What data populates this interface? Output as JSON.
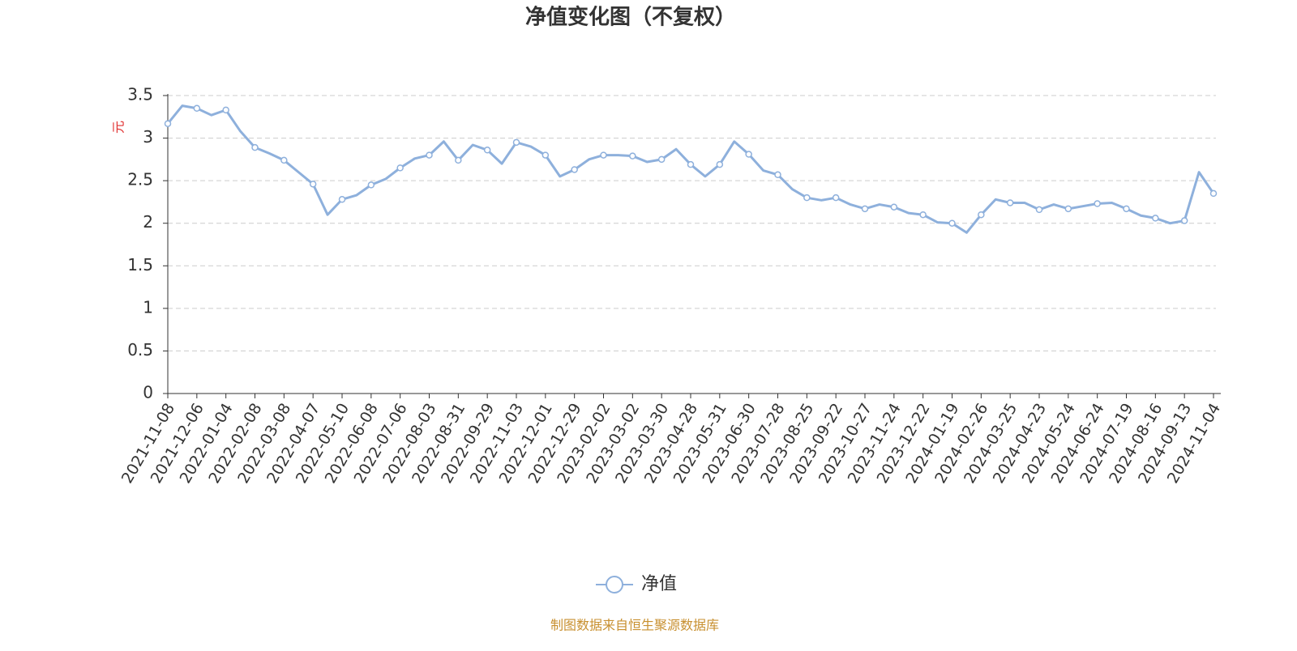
{
  "chart_data": {
    "type": "line",
    "title": "净值变化图（不复权）",
    "y_label": "元",
    "categories": [
      "2021-11-08",
      null,
      "2021-12-06",
      null,
      "2022-01-04",
      null,
      "2022-02-08",
      null,
      "2022-03-08",
      null,
      "2022-04-07",
      null,
      "2022-05-10",
      null,
      "2022-06-08",
      null,
      "2022-07-06",
      null,
      "2022-08-03",
      null,
      "2022-08-31",
      null,
      "2022-09-29",
      null,
      "2022-11-03",
      null,
      "2022-12-01",
      null,
      "2022-12-29",
      null,
      "2023-02-02",
      null,
      "2023-03-02",
      null,
      "2023-03-30",
      null,
      "2023-04-28",
      null,
      "2023-05-31",
      null,
      "2023-06-30",
      null,
      "2023-07-28",
      null,
      "2023-08-25",
      null,
      "2023-09-22",
      null,
      "2023-10-27",
      null,
      "2023-11-24",
      null,
      "2023-12-22",
      null,
      "2024-01-19",
      null,
      "2024-02-26",
      null,
      "2024-03-25",
      null,
      "2024-04-23",
      null,
      "2024-05-24",
      null,
      "2024-06-24",
      null,
      "2024-07-19",
      null,
      "2024-08-16",
      null,
      "2024-09-13",
      null,
      "2024-11-04"
    ],
    "series": [
      {
        "name": "净值",
        "color": "#8eb0dc",
        "values": [
          3.17,
          3.38,
          3.35,
          3.27,
          3.33,
          3.08,
          2.89,
          2.82,
          2.74,
          2.6,
          2.46,
          2.1,
          2.28,
          2.33,
          2.45,
          2.52,
          2.65,
          2.76,
          2.8,
          2.96,
          2.74,
          2.92,
          2.86,
          2.7,
          2.95,
          2.9,
          2.8,
          2.55,
          2.63,
          2.75,
          2.8,
          2.8,
          2.79,
          2.72,
          2.75,
          2.87,
          2.69,
          2.55,
          2.69,
          2.96,
          2.81,
          2.62,
          2.57,
          2.4,
          2.3,
          2.27,
          2.3,
          2.22,
          2.17,
          2.22,
          2.19,
          2.12,
          2.1,
          2.01,
          2.0,
          1.89,
          2.1,
          2.28,
          2.24,
          2.24,
          2.16,
          2.22,
          2.17,
          2.2,
          2.23,
          2.24,
          2.17,
          2.09,
          2.06,
          2.0,
          2.03,
          2.6,
          2.35
        ]
      }
    ],
    "ylim": [
      0,
      3.5
    ],
    "yticks": [
      0,
      0.5,
      1,
      1.5,
      2,
      2.5,
      3,
      3.5
    ],
    "grid": true,
    "legend": "bottom",
    "source": "制图数据来自恒生聚源数据库"
  }
}
